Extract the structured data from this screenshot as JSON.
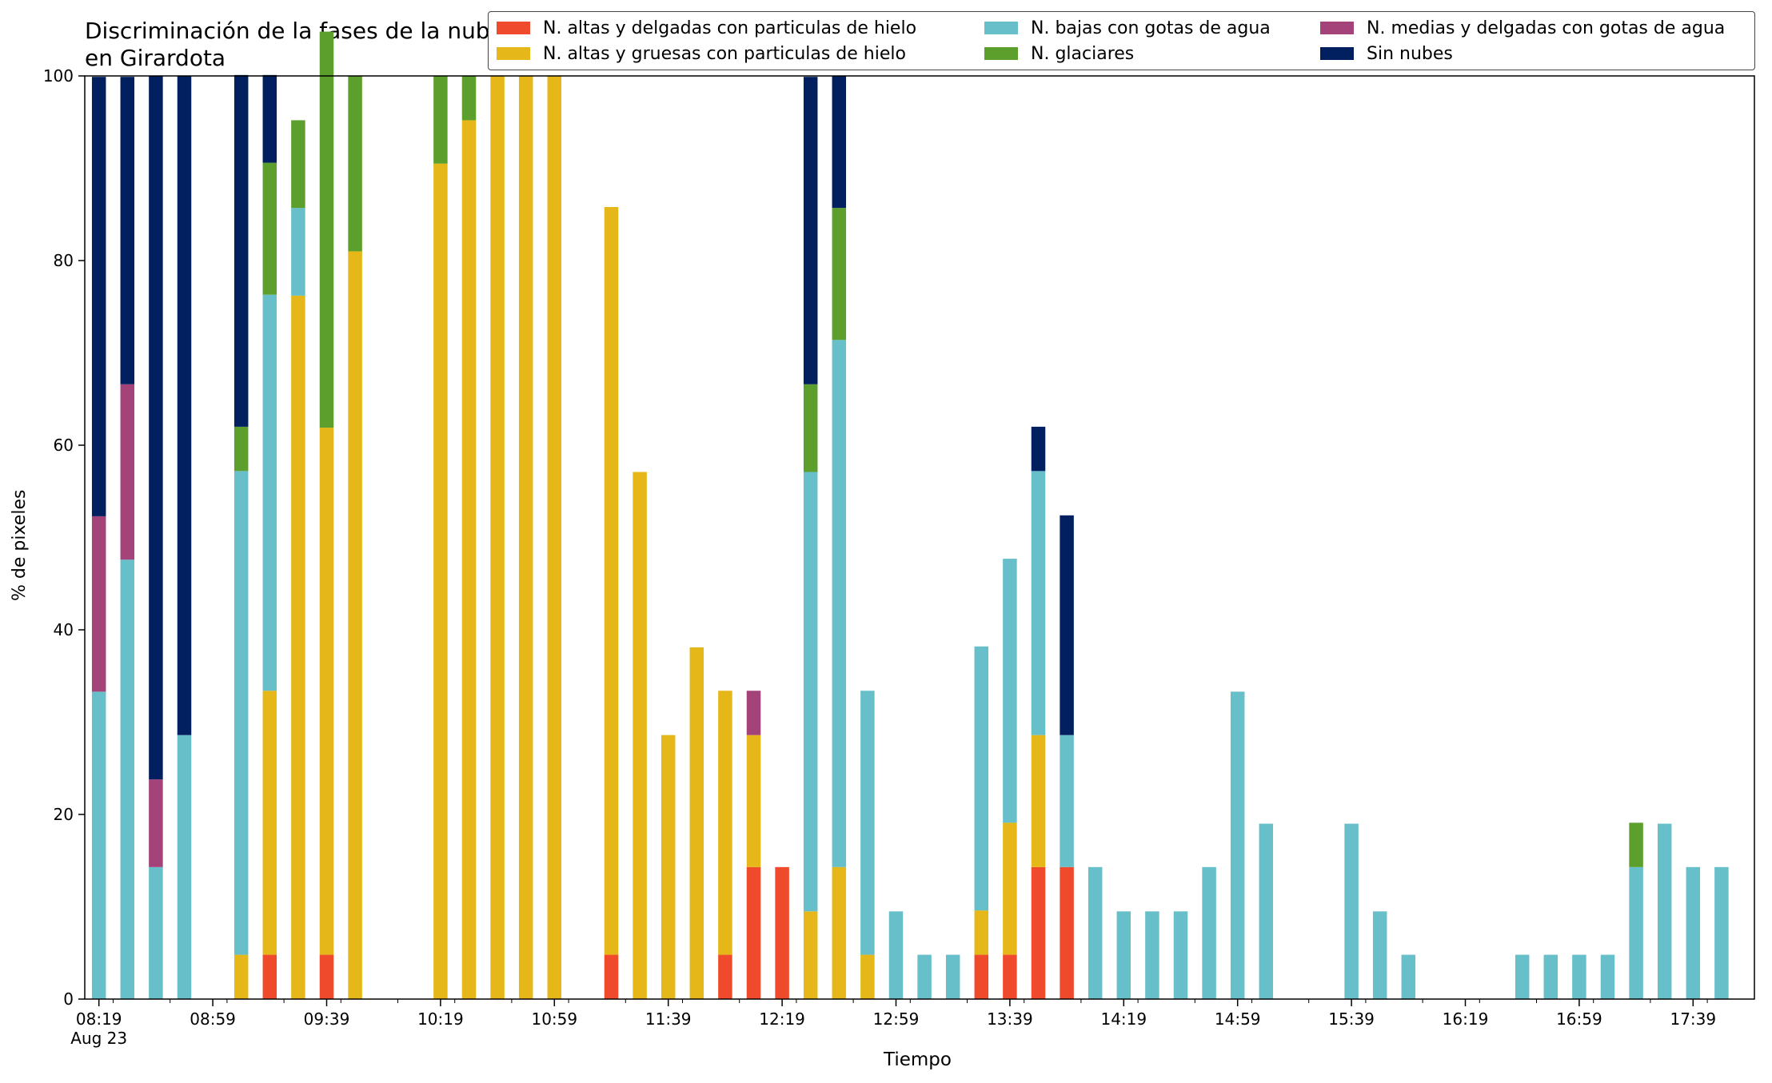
{
  "chart_data": {
    "type": "bar",
    "stacked": true,
    "title": "Discriminación de la fases de la nube en Girardota",
    "xlabel": "Tiempo",
    "ylabel": "% de pixeles",
    "ylim": [
      0,
      100
    ],
    "yticks": [
      0,
      20,
      40,
      60,
      80,
      100
    ],
    "grid": false,
    "legend_position": "top-right",
    "x_ticks": [
      {
        "label": "08:19",
        "sub": "Aug 23",
        "slot": 0
      },
      {
        "label": "08:59",
        "slot": 4
      },
      {
        "label": "09:39",
        "slot": 8
      },
      {
        "label": "10:19",
        "slot": 12
      },
      {
        "label": "10:59",
        "slot": 16
      },
      {
        "label": "11:39",
        "slot": 20
      },
      {
        "label": "12:19",
        "slot": 24
      },
      {
        "label": "12:59",
        "slot": 28
      },
      {
        "label": "13:39",
        "slot": 32
      },
      {
        "label": "14:19",
        "slot": 36
      },
      {
        "label": "14:59",
        "slot": 40
      },
      {
        "label": "15:39",
        "slot": 44
      },
      {
        "label": "16:19",
        "slot": 48
      },
      {
        "label": "16:59",
        "slot": 52
      },
      {
        "label": "17:39",
        "slot": 56
      }
    ],
    "categories": [
      "08:19",
      "08:29",
      "08:39",
      "08:49",
      "08:59",
      "09:09",
      "09:19",
      "09:29",
      "09:39",
      "09:49",
      "09:59",
      "10:09",
      "10:19",
      "10:29",
      "10:39",
      "10:49",
      "10:59",
      "11:09",
      "11:19",
      "11:29",
      "11:39",
      "11:49",
      "11:59",
      "12:09",
      "12:19",
      "12:29",
      "12:39",
      "12:49",
      "12:59",
      "13:09",
      "13:19",
      "13:29",
      "13:39",
      "13:49",
      "13:59",
      "14:09",
      "14:19",
      "14:29",
      "14:39",
      "14:49",
      "14:59",
      "15:09",
      "15:19",
      "15:29",
      "15:39",
      "15:49",
      "15:59",
      "16:09",
      "16:19",
      "16:29",
      "16:39",
      "16:49",
      "16:59",
      "17:09",
      "17:19",
      "17:29",
      "17:39",
      "17:49"
    ],
    "series": [
      {
        "name": "N. altas y delgadas con particulas de hielo",
        "color": "#ef4a2c",
        "values": [
          0,
          0,
          0,
          0,
          0,
          0,
          4.8,
          0,
          4.8,
          0,
          0,
          0,
          0,
          0,
          0,
          0,
          0,
          0,
          4.8,
          0,
          0,
          0,
          4.8,
          14.3,
          14.3,
          0,
          0,
          0,
          0,
          0,
          0,
          4.8,
          4.8,
          14.3,
          14.3,
          0,
          0,
          0,
          0,
          0,
          0,
          0,
          0,
          0,
          0,
          0,
          0,
          0,
          0,
          0,
          0,
          0,
          0,
          0,
          0,
          0,
          0,
          0
        ]
      },
      {
        "name": "N. altas y gruesas con particulas de hielo",
        "color": "#e5b719",
        "values": [
          0,
          0,
          0,
          0,
          0,
          4.8,
          28.6,
          76.2,
          57.1,
          81.0,
          0,
          0,
          90.5,
          95.2,
          100,
          100,
          100,
          0,
          81.0,
          57.1,
          28.6,
          38.1,
          28.6,
          14.3,
          0,
          9.5,
          14.3,
          4.8,
          0,
          0,
          0,
          4.8,
          14.3,
          14.3,
          0,
          0,
          0,
          0,
          0,
          0,
          0,
          0,
          0,
          0,
          0,
          0,
          0,
          0,
          0,
          0,
          0,
          0,
          0,
          0,
          0,
          0,
          0,
          0
        ]
      },
      {
        "name": "N. bajas con gotas de agua",
        "color": "#67bfca",
        "values": [
          33.3,
          47.6,
          14.3,
          28.6,
          0,
          52.4,
          42.9,
          9.5,
          0,
          0,
          0,
          0,
          0,
          0,
          0,
          0,
          0,
          0,
          0,
          0,
          0,
          0,
          0,
          0,
          0,
          47.6,
          57.1,
          28.6,
          9.5,
          4.8,
          4.8,
          28.6,
          28.6,
          28.6,
          14.3,
          14.3,
          9.5,
          9.5,
          9.5,
          14.3,
          33.3,
          19.0,
          0,
          0,
          19.0,
          9.5,
          4.8,
          0,
          0,
          0,
          4.8,
          4.8,
          4.8,
          4.8,
          14.3,
          19.0,
          14.3,
          14.3
        ]
      },
      {
        "name": "N. glaciares",
        "color": "#5d9f2c",
        "values": [
          0,
          0,
          0,
          0,
          0,
          4.8,
          14.3,
          9.5,
          42.9,
          19.0,
          0,
          0,
          9.5,
          4.8,
          0,
          0,
          0,
          0,
          0,
          0,
          0,
          0,
          0,
          0,
          0,
          9.5,
          14.3,
          0,
          0,
          0,
          0,
          0,
          0,
          0,
          0,
          0,
          0,
          0,
          0,
          0,
          0,
          0,
          0,
          0,
          0,
          0,
          0,
          0,
          0,
          0,
          0,
          0,
          0,
          0,
          4.8,
          0,
          0,
          0
        ]
      },
      {
        "name": "N. medias y delgadas con gotas de agua",
        "color": "#a4427a",
        "values": [
          19.0,
          19.0,
          9.5,
          0,
          0,
          0,
          0,
          0,
          0,
          0,
          0,
          0,
          0,
          0,
          0,
          0,
          0,
          0,
          0,
          0,
          0,
          0,
          0,
          4.8,
          0,
          0,
          0,
          0,
          0,
          0,
          0,
          0,
          0,
          0,
          0,
          0,
          0,
          0,
          0,
          0,
          0,
          0,
          0,
          0,
          0,
          0,
          0,
          0,
          0,
          0,
          0,
          0,
          0,
          0,
          0,
          0,
          0,
          0
        ]
      },
      {
        "name": "Sin nubes",
        "color": "#02205f",
        "values": [
          47.6,
          33.3,
          76.2,
          71.4,
          0,
          38.1,
          9.5,
          0,
          0,
          0,
          0,
          0,
          0,
          0,
          0,
          0,
          0,
          0,
          0,
          0,
          0,
          0,
          0,
          0,
          0,
          33.3,
          14.3,
          0,
          0,
          0,
          0,
          0,
          0,
          4.8,
          23.8,
          0,
          0,
          0,
          0,
          0,
          0,
          0,
          0,
          0,
          0,
          0,
          0,
          0,
          0,
          0,
          0,
          0,
          0,
          0,
          0,
          0,
          0,
          0
        ]
      }
    ]
  }
}
